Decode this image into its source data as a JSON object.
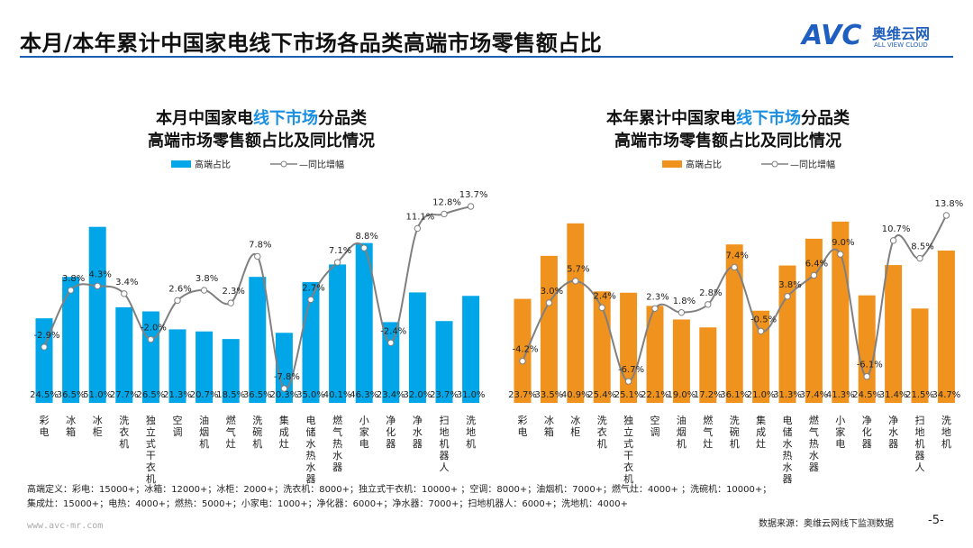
{
  "header": {
    "title": "本月/本年累计中国家电线下市场各品类高端市场零售额占比",
    "logo_text": "AVC",
    "logo_cn": "奥维云网",
    "logo_en": "ALL VIEW CLOUD"
  },
  "footer": {
    "definition_line1": "高端定义：彩电：15000+；冰箱：12000+；冰柜：2000+；洗衣机：8000+；独立式干衣机：10000+ ；空调：8000+；油烟机：7000+；燃气灶：4000+ ；洗碗机：10000+；",
    "definition_line2": "集成灶：15000+；电热：4000+；燃热：5000+；小家电：1000+；净化器：6000+；净水器：7000+；扫地机器人：6000+；洗地机：4000+",
    "url": "www.avc-mr.com",
    "source": "数据来源：奥维云网线下监测数据",
    "page": "-5-"
  },
  "chart_data": [
    {
      "type": "bar+line",
      "title_line1_pre": "本月中国家电",
      "title_line1_hl": "线下市场",
      "title_line1_post": "分品类",
      "title_line2": "高端市场零售额占比及同比情况",
      "legend": {
        "bar": "高端占比",
        "line": "同比增幅",
        "placement": "top"
      },
      "bar_color": "#00a6e8",
      "highlight_color": "#1a8fe0",
      "line_color": "#808080",
      "categories": [
        "彩电",
        "冰箱",
        "冰柜",
        "洗衣机",
        "独立式干衣机",
        "空调",
        "油烟机",
        "燃气灶",
        "洗碗机",
        "集成灶",
        "电储水热水器",
        "燃气热水器",
        "小家电",
        "净化器",
        "净水器",
        "扫地机器人",
        "洗地机"
      ],
      "bar_values": [
        24.5,
        36.5,
        51.0,
        27.7,
        26.5,
        21.3,
        20.7,
        18.5,
        36.5,
        20.3,
        35.0,
        40.1,
        46.3,
        23.4,
        32.0,
        23.7,
        31.0
      ],
      "line_values": [
        -2.9,
        3.8,
        4.3,
        3.4,
        -2.0,
        2.6,
        3.8,
        2.3,
        7.8,
        -7.8,
        2.7,
        7.1,
        8.8,
        -2.4,
        11.1,
        12.8,
        13.7
      ],
      "unit": "%"
    },
    {
      "type": "bar+line",
      "title_line1_pre": "本年累计中国家电",
      "title_line1_hl": "线下市场",
      "title_line1_post": "分品类",
      "title_line2": "高端市场零售额占比及同比情况",
      "legend": {
        "bar": "高端占比",
        "line": "同比增幅",
        "placement": "top"
      },
      "bar_color": "#f0921e",
      "highlight_color": "#1a8fe0",
      "line_color": "#808080",
      "categories": [
        "彩电",
        "冰箱",
        "冰柜",
        "洗衣机",
        "独立式干衣机",
        "空调",
        "油烟机",
        "燃气灶",
        "洗碗机",
        "集成灶",
        "电储水热水器",
        "燃气热水器",
        "小家电",
        "净化器",
        "净水器",
        "扫地机器人",
        "洗地机"
      ],
      "bar_values": [
        23.7,
        33.5,
        40.9,
        25.4,
        25.1,
        22.1,
        19.0,
        17.2,
        36.1,
        21.0,
        31.3,
        37.4,
        41.3,
        24.5,
        31.4,
        21.5,
        34.7
      ],
      "line_values": [
        -4.2,
        3.0,
        5.7,
        2.4,
        -6.7,
        2.3,
        1.8,
        2.8,
        7.4,
        -0.5,
        3.8,
        6.4,
        9.0,
        -6.1,
        10.7,
        8.5,
        13.8
      ],
      "unit": "%"
    }
  ]
}
